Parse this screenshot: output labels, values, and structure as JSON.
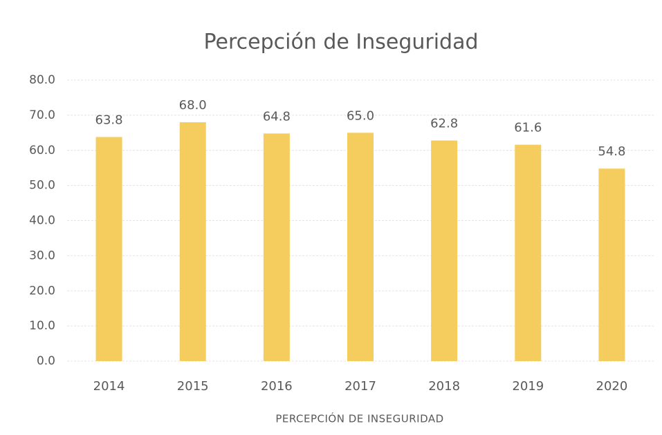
{
  "chart_data": {
    "type": "bar",
    "title": "Percepción de Inseguridad",
    "x_label": "PERCEPCIÓN DE INSEGURIDAD",
    "categories": [
      "2014",
      "2015",
      "2016",
      "2017",
      "2018",
      "2019",
      "2020"
    ],
    "values": [
      63.8,
      68.0,
      64.8,
      65.0,
      62.8,
      61.6,
      54.8
    ],
    "value_labels": [
      "63.8",
      "68.0",
      "64.8",
      "65.0",
      "62.8",
      "61.6",
      "54.8"
    ],
    "color": "#f5cd5f",
    "ylim": [
      0,
      80
    ],
    "yticks": [
      {
        "value": 0,
        "label": "0.0"
      },
      {
        "value": 10,
        "label": "10.0"
      },
      {
        "value": 20,
        "label": "20.0"
      },
      {
        "value": 30,
        "label": "30.0"
      },
      {
        "value": 40,
        "label": "40.0"
      },
      {
        "value": 50,
        "label": "50.0"
      },
      {
        "value": 60,
        "label": "60.0"
      },
      {
        "value": 70,
        "label": "70.0"
      },
      {
        "value": 80,
        "label": "80.0"
      }
    ],
    "grid": true
  }
}
